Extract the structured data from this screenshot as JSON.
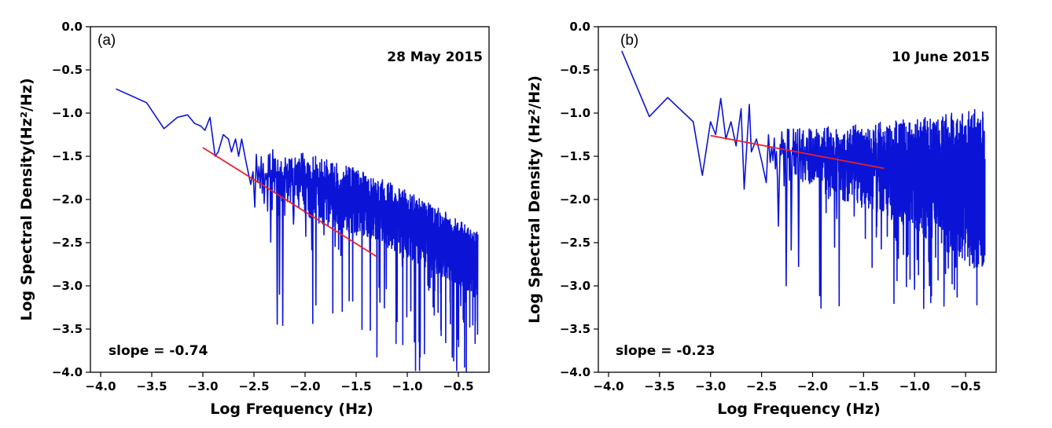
{
  "chart_data": [
    {
      "type": "line",
      "panel_label": "(a)",
      "date": "28 May 2015",
      "slope_text": "slope = -0.74",
      "xlabel": "Log Frequency (Hz)",
      "ylabel": "Log Spectral Density(Hz²/Hz)",
      "xlim": [
        -4.1,
        -0.2
      ],
      "ylim": [
        -4.0,
        0.0
      ],
      "xticks": [
        -4.0,
        -3.5,
        -3.0,
        -2.5,
        -2.0,
        -1.5,
        -1.0,
        -0.5
      ],
      "xtick_labels": [
        "−4.0",
        "−3.5",
        "−3.0",
        "−2.5",
        "−2.0",
        "−1.5",
        "−1.0",
        "−0.5"
      ],
      "yticks": [
        0.0,
        -0.5,
        -1.0,
        -1.5,
        -2.0,
        -2.5,
        -3.0,
        -3.5,
        -4.0
      ],
      "ytick_labels": [
        "0.0",
        "−0.5",
        "−1.0",
        "−1.5",
        "−2.0",
        "−2.5",
        "−3.0",
        "−3.5",
        "−4.0"
      ],
      "series": [
        {
          "name": "spectrum",
          "color": "#0b14d6",
          "x": [
            -3.85,
            -3.55,
            -3.38,
            -3.25,
            -3.15,
            -3.08,
            -3.02,
            -2.98,
            -2.93,
            -2.88,
            -2.85,
            -2.8,
            -2.75,
            -2.72,
            -2.68,
            -2.65,
            -2.62,
            -2.58
          ],
          "y": [
            -0.72,
            -0.88,
            -1.18,
            -1.05,
            -1.02,
            -1.12,
            -1.15,
            -1.2,
            -1.05,
            -1.5,
            -1.45,
            -1.25,
            -1.3,
            -1.45,
            -1.3,
            -1.5,
            -1.3,
            -1.55
          ]
        },
        {
          "name": "fit",
          "color": "#e8202a",
          "x": [
            -3.0,
            -1.3
          ],
          "y": [
            -1.4,
            -2.66
          ]
        }
      ],
      "noise": {
        "x_start": -2.58,
        "x_end": -0.31,
        "mean_start": -1.7,
        "mean_end": -2.7,
        "spread_start": 0.35,
        "spread_end": 0.35,
        "dip_min": -4.05
      }
    },
    {
      "type": "line",
      "panel_label": "(b)",
      "date": "10 June 2015",
      "slope_text": "slope = -0.23",
      "xlabel": "Log Frequency (Hz)",
      "ylabel": "Log Spectral Density (Hz²/Hz)",
      "xlim": [
        -4.1,
        -0.2
      ],
      "ylim": [
        -4.0,
        0.0
      ],
      "xticks": [
        -4.0,
        -3.5,
        -3.0,
        -2.5,
        -2.0,
        -1.5,
        -1.0,
        -0.5
      ],
      "xtick_labels": [
        "−4.0",
        "−3.5",
        "−3.0",
        "−2.5",
        "−2.0",
        "−1.5",
        "−1.0",
        "−0.5"
      ],
      "yticks": [
        0.0,
        -0.5,
        -1.0,
        -1.5,
        -2.0,
        -2.5,
        -3.0,
        -3.5,
        -4.0
      ],
      "ytick_labels": [
        "0.0",
        "−0.5",
        "−1.0",
        "−1.5",
        "−2.0",
        "−2.5",
        "−3.0",
        "−3.5",
        "−4.0"
      ],
      "series": [
        {
          "name": "spectrum",
          "color": "#0b14d6",
          "x": [
            -3.87,
            -3.6,
            -3.42,
            -3.17,
            -3.08,
            -3.0,
            -2.95,
            -2.9,
            -2.85,
            -2.8,
            -2.75,
            -2.7,
            -2.67,
            -2.62,
            -2.6,
            -2.55,
            -2.5
          ],
          "y": [
            -0.28,
            -1.04,
            -0.82,
            -1.1,
            -1.72,
            -1.1,
            -1.25,
            -0.83,
            -1.3,
            -1.1,
            -1.38,
            -0.95,
            -1.88,
            -0.9,
            -1.45,
            -1.3,
            -1.55
          ]
        },
        {
          "name": "fit",
          "color": "#e8202a",
          "x": [
            -3.0,
            -1.3
          ],
          "y": [
            -1.26,
            -1.64
          ]
        }
      ],
      "noise": {
        "x_start": -2.5,
        "x_end": -0.31,
        "mean_start": -1.45,
        "mean_end": -1.75,
        "spread_start": 0.3,
        "spread_end": 0.9,
        "dip_min": -3.28
      }
    }
  ]
}
